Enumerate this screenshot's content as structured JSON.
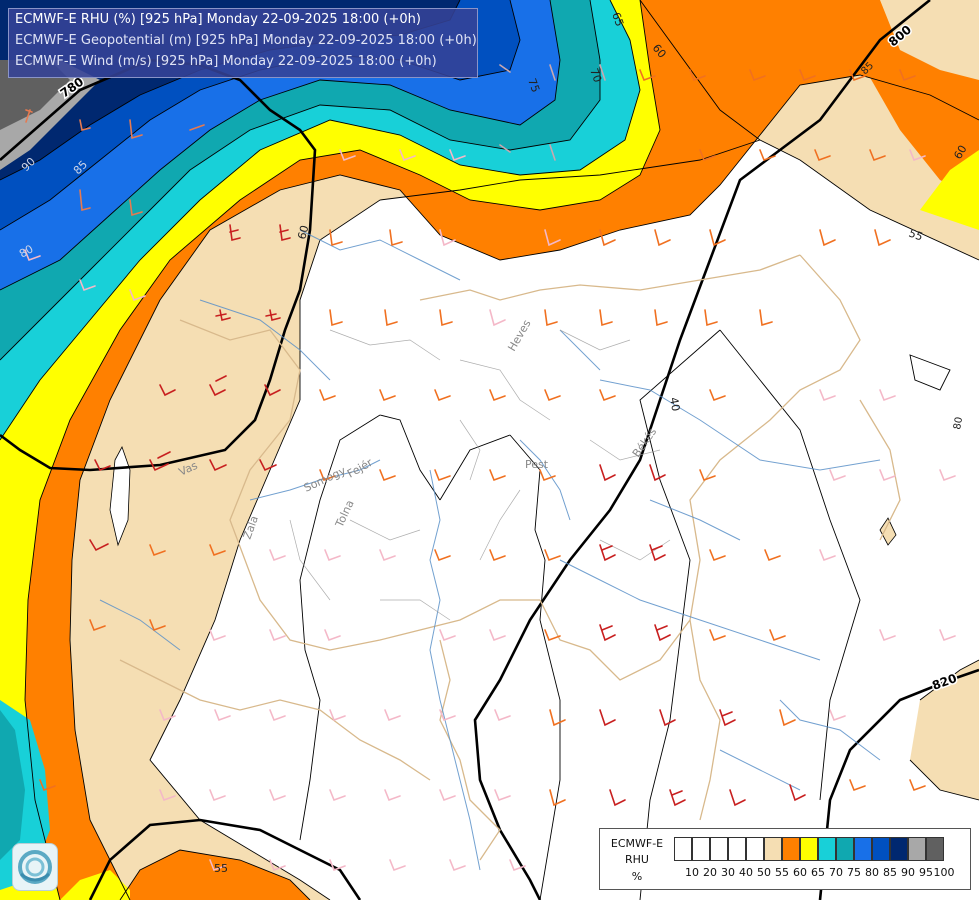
{
  "header": {
    "line1": "ECMWF-E RHU (%) [925 hPa] Monday 22-09-2025 18:00 (+0h)",
    "line2": "ECMWF-E Geopotential (m) [925 hPa] Monday 22-09-2025 18:00 (+0h)",
    "line3": "ECMWF-E Wind (m/s) [925 hPa] Monday 22-09-2025 18:00 (+0h)"
  },
  "legend": {
    "model": "ECMWF-E",
    "variable": "RHU",
    "unit": "%",
    "swatches": [
      "#ffffff",
      "#ffffff",
      "#ffffff",
      "#ffffff",
      "#ffffff",
      "#f5deb3",
      "#ff8000",
      "#ffff00",
      "#18d0d8",
      "#10a8b0",
      "#1870e8",
      "#0050c0",
      "#002870",
      "#a8a8a8",
      "#606060"
    ],
    "ticks": [
      "10",
      "20",
      "30",
      "40",
      "50",
      "55",
      "60",
      "65",
      "70",
      "75",
      "80",
      "85",
      "90",
      "95",
      "100"
    ]
  },
  "contour_labels": {
    "geo_780": "780",
    "geo_800": "800",
    "geo_820": "820",
    "rh_85a": "85",
    "rh_80a": "80",
    "rh_75": "75",
    "rh_70": "70",
    "rh_65": "65",
    "rh_60a": "60",
    "rh_60b": "60",
    "rh_60c": "60",
    "rh_55a": "55",
    "rh_55b": "55",
    "rh_40": "40",
    "rh_90": "90",
    "rh_85b": "85",
    "rh_80b": "80"
  },
  "places": {
    "pest": "Pest",
    "heves": "Heves",
    "bekes": "Békés",
    "somogy": "Somogy",
    "fejer": "Fejér",
    "tolna": "Tolna",
    "vas": "Vas",
    "zala": "Zala"
  }
}
